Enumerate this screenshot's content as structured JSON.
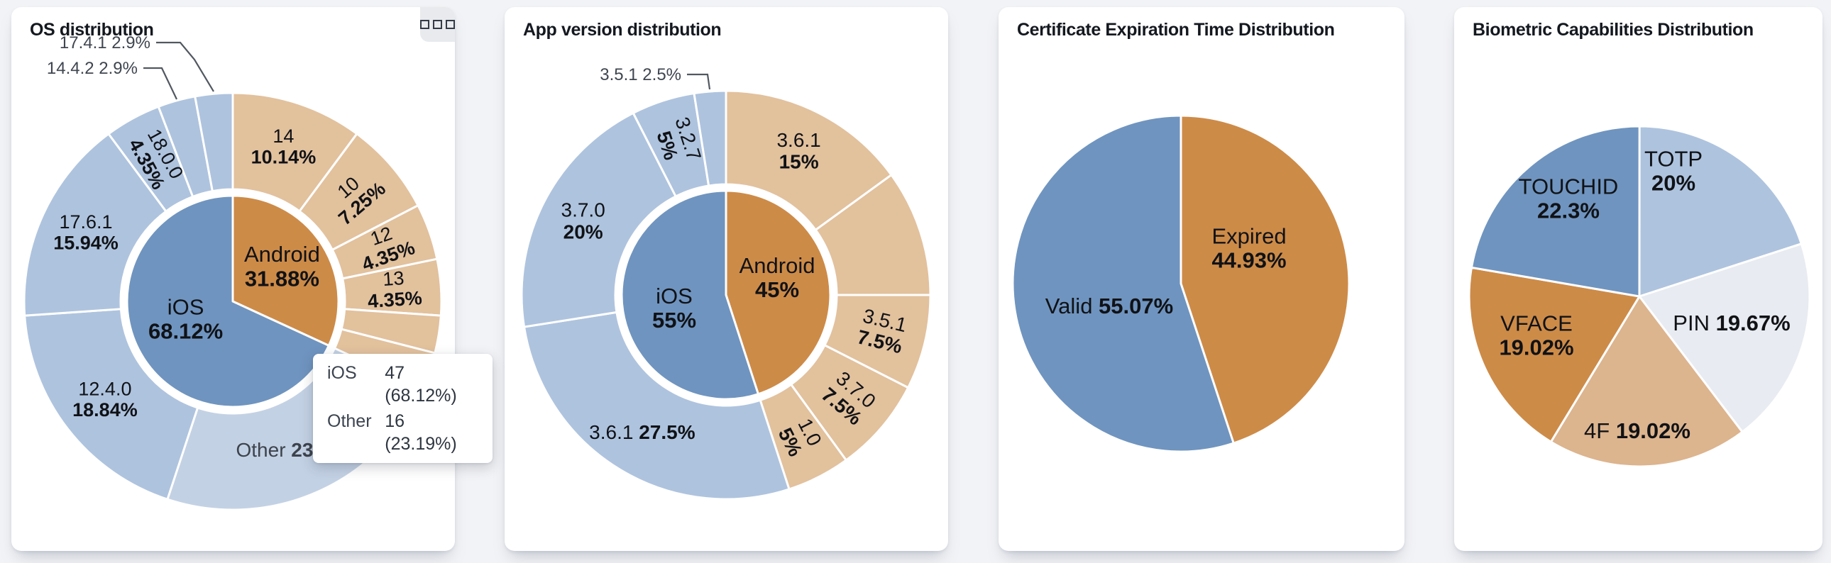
{
  "palette": {
    "blue": "#6f94bf",
    "orange": "#cd8b48",
    "blueLight": "#aec3de",
    "orangeLight": "#e2c19d",
    "blueHighlight": "#c3d1e4",
    "paleBlue": "#e8ebf1",
    "tanMid": "#dcb48e",
    "pageBg": "#f2f3f6",
    "cardBg": "#ffffff",
    "titleColor": "#14181f",
    "labelDark": "#101216",
    "labelGray": "#3d434c",
    "leader": "#515861"
  },
  "cards": [
    {
      "title": "OS distribution",
      "menu_icon": "three-squares",
      "tooltip": {
        "rows": [
          {
            "name": "iOS",
            "value": "47 (68.12%)"
          },
          {
            "name": "Other",
            "value": "16 (23.19%)"
          }
        ]
      }
    },
    {
      "title": "App version distribution"
    },
    {
      "title": "Certificate Expiration Time Distribution"
    },
    {
      "title": "Biometric Capabilities Distribution"
    }
  ],
  "chart_data": [
    {
      "type": "sunburst",
      "title": "OS distribution",
      "unit": "%",
      "legend_position": "none",
      "inner": [
        {
          "name": "Android",
          "value": 31.88,
          "label": "31.88%",
          "color": "orange"
        },
        {
          "name": "iOS",
          "value": 68.12,
          "label": "68.12%",
          "color": "blue"
        }
      ],
      "outer": [
        {
          "name": "14",
          "value": 10.14,
          "label": "10.14%",
          "color": "orangeLight"
        },
        {
          "name": "10",
          "value": 7.25,
          "label": "7.25%",
          "color": "orangeLight",
          "rotate": "radial"
        },
        {
          "name": "12",
          "value": 4.35,
          "label": "4.35%",
          "color": "orangeLight",
          "rotate": "radial"
        },
        {
          "name": "13",
          "value": 4.35,
          "label": "4.35%",
          "color": "orangeLight",
          "rotate": "radial"
        },
        {
          "name": "",
          "value": 2.9,
          "color": "orangeLight"
        },
        {
          "name": "",
          "value": 2.89,
          "color": "orangeLight"
        },
        {
          "name": "Other",
          "value": 23.19,
          "label": "23.19%",
          "color": "blueHighlight",
          "single": true,
          "gray": true
        },
        {
          "name": "12.4.0",
          "value": 18.84,
          "label": "18.84%",
          "color": "blueLight"
        },
        {
          "name": "17.6.1",
          "value": 15.94,
          "label": "15.94%",
          "color": "blueLight"
        },
        {
          "name": "18.0.0",
          "value": 4.35,
          "label": "4.35%",
          "color": "blueLight",
          "rotate": "radial"
        },
        {
          "name": "14.4.2",
          "value": 2.9,
          "label": "2.9%",
          "color": "blueLight",
          "outside": true
        },
        {
          "name": "17.4.1",
          "value": 2.9,
          "label": "2.9%",
          "color": "blueLight",
          "outside": true
        }
      ]
    },
    {
      "type": "sunburst",
      "title": "App version distribution",
      "unit": "%",
      "legend_position": "none",
      "inner": [
        {
          "name": "Android",
          "value": 45,
          "label": "45%",
          "color": "orange"
        },
        {
          "name": "iOS",
          "value": 55,
          "label": "55%",
          "color": "blue"
        }
      ],
      "outer": [
        {
          "name": "3.6.1",
          "value": 15,
          "label": "15%",
          "color": "orangeLight"
        },
        {
          "name": "",
          "value": 10,
          "color": "orangeLight"
        },
        {
          "name": "3.5.1",
          "value": 7.5,
          "label": "7.5%",
          "color": "orangeLight",
          "rotate": "radial"
        },
        {
          "name": "3.7.0",
          "value": 7.5,
          "label": "7.5%",
          "color": "orangeLight",
          "rotate": "radial"
        },
        {
          "name": "1.0",
          "value": 5,
          "label": "5%",
          "color": "orangeLight",
          "rotate": "radial"
        },
        {
          "name": "3.6.1",
          "value": 27.5,
          "label": "27.5%",
          "color": "blueLight",
          "single": true
        },
        {
          "name": "3.7.0",
          "value": 20,
          "label": "20%",
          "color": "blueLight"
        },
        {
          "name": "3.2.7",
          "value": 5,
          "label": "5%",
          "color": "blueLight",
          "rotate": "radial"
        },
        {
          "name": "3.5.1",
          "value": 2.5,
          "label": "2.5%",
          "color": "blueLight",
          "outside": true
        }
      ]
    },
    {
      "type": "pie",
      "title": "Certificate Expiration Time Distribution",
      "unit": "%",
      "legend_position": "none",
      "slices": [
        {
          "name": "Expired",
          "value": 44.93,
          "label": "44.93%",
          "color": "orange"
        },
        {
          "name": "Valid",
          "value": 55.07,
          "label": "55.07%",
          "color": "blue",
          "single": true
        }
      ]
    },
    {
      "type": "pie",
      "title": "Biometric Capabilities Distribution",
      "unit": "%",
      "legend_position": "none",
      "slices": [
        {
          "name": "TOTP",
          "value": 20,
          "label": "20%",
          "color": "blueLight"
        },
        {
          "name": "PIN",
          "value": 19.67,
          "label": "19.67%",
          "color": "paleBlue",
          "single": true
        },
        {
          "name": "4F",
          "value": 19.02,
          "label": "19.02%",
          "color": "tanMid",
          "single": true
        },
        {
          "name": "VFACE",
          "value": 19.02,
          "label": "19.02%",
          "color": "orange"
        },
        {
          "name": "TOUCHID",
          "value": 22.3,
          "label": "22.3%",
          "color": "blue"
        }
      ]
    }
  ]
}
